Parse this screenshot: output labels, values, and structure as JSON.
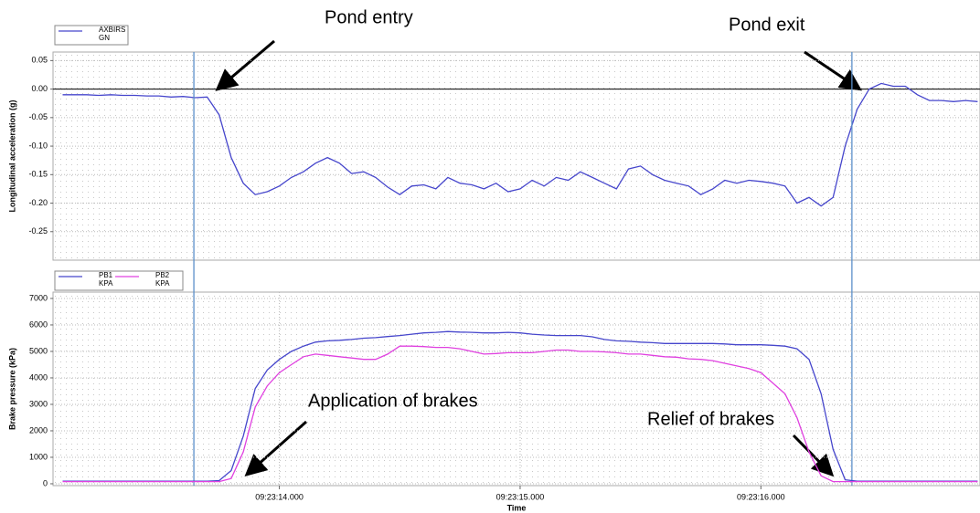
{
  "chart_data": [
    {
      "type": "line",
      "y_label": "Longitudinal acceleration (g)",
      "x": [
        13.1,
        13.15,
        13.2,
        13.25,
        13.3,
        13.35,
        13.4,
        13.45,
        13.5,
        13.55,
        13.6,
        13.65,
        13.7,
        13.75,
        13.8,
        13.85,
        13.9,
        13.95,
        14.0,
        14.05,
        14.1,
        14.15,
        14.2,
        14.25,
        14.3,
        14.35,
        14.4,
        14.45,
        14.5,
        14.55,
        14.6,
        14.65,
        14.7,
        14.75,
        14.8,
        14.85,
        14.9,
        14.95,
        15.0,
        15.05,
        15.1,
        15.15,
        15.2,
        15.25,
        15.3,
        15.35,
        15.4,
        15.45,
        15.5,
        15.55,
        15.6,
        15.65,
        15.7,
        15.75,
        15.8,
        15.85,
        15.9,
        15.95,
        16.0,
        16.05,
        16.1,
        16.15,
        16.2,
        16.25,
        16.3,
        16.35,
        16.4,
        16.45,
        16.5,
        16.55,
        16.6,
        16.65,
        16.7,
        16.75,
        16.8,
        16.85,
        16.9
      ],
      "series": [
        {
          "name": "AXBIRS",
          "unit": "GN",
          "color": "#4646cc",
          "values": [
            -0.01,
            -0.01,
            -0.01,
            -0.011,
            -0.01,
            -0.011,
            -0.011,
            -0.012,
            -0.012,
            -0.014,
            -0.013,
            -0.015,
            -0.014,
            -0.045,
            -0.12,
            -0.165,
            -0.185,
            -0.18,
            -0.17,
            -0.155,
            -0.145,
            -0.13,
            -0.12,
            -0.13,
            -0.148,
            -0.145,
            -0.155,
            -0.172,
            -0.185,
            -0.17,
            -0.168,
            -0.175,
            -0.155,
            -0.165,
            -0.168,
            -0.175,
            -0.165,
            -0.18,
            -0.175,
            -0.16,
            -0.17,
            -0.155,
            -0.16,
            -0.145,
            -0.155,
            -0.165,
            -0.175,
            -0.14,
            -0.135,
            -0.15,
            -0.16,
            -0.165,
            -0.17,
            -0.185,
            -0.175,
            -0.16,
            -0.165,
            -0.16,
            -0.162,
            -0.165,
            -0.17,
            -0.2,
            -0.19,
            -0.205,
            -0.19,
            -0.1,
            -0.035,
            0,
            0.01,
            0.005,
            0.005,
            -0.01,
            -0.02,
            -0.02,
            -0.022,
            -0.02,
            -0.022
          ]
        }
      ],
      "xlim": [
        13.06,
        16.91
      ],
      "ylim": [
        -0.3,
        0.065
      ],
      "yticks": [
        0.05,
        {
          "value": 0,
          "label": "0.00"
        },
        -0.05,
        {
          "value": -0.1,
          "label": "-0.10"
        },
        -0.15,
        {
          "value": -0.2,
          "label": "-0.20"
        },
        -0.25
      ],
      "hline": 0,
      "vlines": [
        13.645,
        16.378
      ],
      "grid": true
    },
    {
      "type": "line",
      "y_label": "Brake pressure (kPa)",
      "x_label": "Time",
      "x": [
        13.1,
        13.15,
        13.2,
        13.25,
        13.3,
        13.35,
        13.4,
        13.45,
        13.5,
        13.55,
        13.6,
        13.65,
        13.7,
        13.75,
        13.8,
        13.85,
        13.9,
        13.95,
        14.0,
        14.05,
        14.1,
        14.15,
        14.2,
        14.25,
        14.3,
        14.35,
        14.4,
        14.45,
        14.5,
        14.55,
        14.6,
        14.65,
        14.7,
        14.75,
        14.8,
        14.85,
        14.9,
        14.95,
        15.0,
        15.05,
        15.1,
        15.15,
        15.2,
        15.25,
        15.3,
        15.35,
        15.4,
        15.45,
        15.5,
        15.55,
        15.6,
        15.65,
        15.7,
        15.75,
        15.8,
        15.85,
        15.9,
        15.95,
        16.0,
        16.05,
        16.1,
        16.15,
        16.2,
        16.25,
        16.3,
        16.35,
        16.4,
        16.45,
        16.5,
        16.55,
        16.6,
        16.65,
        16.7,
        16.75,
        16.8,
        16.85,
        16.9
      ],
      "series": [
        {
          "name": "PB1",
          "unit": "KPA",
          "color": "#4646cc",
          "values": [
            100,
            100,
            100,
            100,
            100,
            100,
            100,
            100,
            100,
            100,
            100,
            100,
            100,
            120,
            500,
            1800,
            3600,
            4300,
            4700,
            5000,
            5200,
            5350,
            5400,
            5420,
            5450,
            5500,
            5520,
            5560,
            5600,
            5650,
            5700,
            5720,
            5750,
            5730,
            5720,
            5700,
            5700,
            5720,
            5700,
            5650,
            5620,
            5600,
            5600,
            5600,
            5550,
            5450,
            5400,
            5380,
            5350,
            5330,
            5300,
            5300,
            5300,
            5300,
            5300,
            5280,
            5250,
            5250,
            5250,
            5230,
            5200,
            5100,
            4700,
            3400,
            1300,
            150,
            100,
            100,
            100,
            100,
            100,
            100,
            100,
            100,
            100,
            100,
            100
          ]
        },
        {
          "name": "PB2",
          "unit": "KPA",
          "color": "#e040e0",
          "values": [
            80,
            80,
            80,
            80,
            80,
            80,
            80,
            80,
            80,
            80,
            80,
            80,
            80,
            80,
            200,
            1200,
            2900,
            3700,
            4200,
            4500,
            4800,
            4900,
            4850,
            4800,
            4750,
            4700,
            4700,
            4900,
            5200,
            5200,
            5180,
            5150,
            5150,
            5100,
            5000,
            4900,
            4920,
            4950,
            4950,
            4950,
            5000,
            5050,
            5050,
            5000,
            5000,
            4980,
            4950,
            4900,
            4900,
            4850,
            4800,
            4780,
            4720,
            4700,
            4650,
            4550,
            4450,
            4350,
            4200,
            3800,
            3400,
            2500,
            1200,
            300,
            80,
            80,
            80,
            80,
            80,
            80,
            80,
            80,
            80,
            80,
            80,
            80,
            80
          ]
        }
      ],
      "xlim": [
        13.06,
        16.91
      ],
      "xticks": [
        {
          "value": 14,
          "label": "09:23:14.000"
        },
        {
          "value": 15,
          "label": "09:23:15.000"
        },
        {
          "value": 16,
          "label": "09:23:16.000"
        }
      ],
      "ylim": [
        -70,
        7240
      ],
      "yticks": [
        0,
        1000,
        2000,
        3000,
        4000,
        5000,
        6000,
        7000
      ],
      "grid": true
    }
  ],
  "annotations": [
    {
      "text": "Pond entry"
    },
    {
      "text": "Pond exit"
    },
    {
      "text": "Application of brakes"
    },
    {
      "text": "Relief of brakes"
    }
  ]
}
